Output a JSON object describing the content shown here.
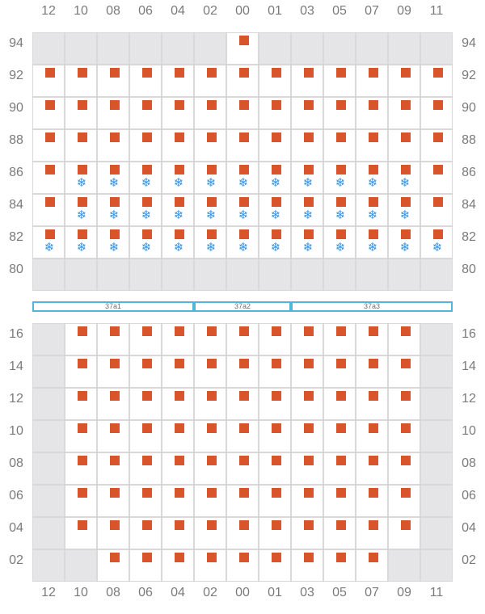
{
  "columns": [
    "12",
    "10",
    "08",
    "06",
    "04",
    "02",
    "00",
    "01",
    "03",
    "05",
    "07",
    "09",
    "11"
  ],
  "upper_block": {
    "rows": [
      {
        "label": "94",
        "cells": [
          "e",
          "e",
          "e",
          "e",
          "e",
          "e",
          "m",
          "e",
          "e",
          "e",
          "e",
          "e",
          "e"
        ]
      },
      {
        "label": "92",
        "cells": [
          "m",
          "m",
          "m",
          "m",
          "m",
          "m",
          "m",
          "m",
          "m",
          "m",
          "m",
          "m",
          "m"
        ]
      },
      {
        "label": "90",
        "cells": [
          "m",
          "m",
          "m",
          "m",
          "m",
          "m",
          "m",
          "m",
          "m",
          "m",
          "m",
          "m",
          "m"
        ]
      },
      {
        "label": "88",
        "cells": [
          "m",
          "m",
          "m",
          "m",
          "m",
          "m",
          "m",
          "m",
          "m",
          "m",
          "m",
          "m",
          "m"
        ]
      },
      {
        "label": "86",
        "cells": [
          "m",
          "mf",
          "mf",
          "mf",
          "mf",
          "mf",
          "mf",
          "mf",
          "mf",
          "mf",
          "mf",
          "mf",
          "m"
        ]
      },
      {
        "label": "84",
        "cells": [
          "m",
          "mf",
          "mf",
          "mf",
          "mf",
          "mf",
          "mf",
          "mf",
          "mf",
          "mf",
          "mf",
          "mf",
          "m"
        ]
      },
      {
        "label": "82",
        "cells": [
          "mf",
          "mf",
          "mf",
          "mf",
          "mf",
          "mf",
          "mf",
          "mf",
          "mf",
          "mf",
          "mf",
          "mf",
          "mf"
        ]
      },
      {
        "label": "80",
        "cells": [
          "e",
          "e",
          "e",
          "e",
          "e",
          "e",
          "e",
          "e",
          "e",
          "e",
          "e",
          "e",
          "e"
        ]
      }
    ]
  },
  "zones": [
    {
      "label": "37a1",
      "from_col": 0,
      "to_col": 4
    },
    {
      "label": "37a2",
      "from_col": 5,
      "to_col": 7
    },
    {
      "label": "37a3",
      "from_col": 8,
      "to_col": 12
    }
  ],
  "lower_block": {
    "rows": [
      {
        "label": "16",
        "cells": [
          "e",
          "m",
          "m",
          "m",
          "m",
          "m",
          "m",
          "m",
          "m",
          "m",
          "m",
          "m",
          "e"
        ]
      },
      {
        "label": "14",
        "cells": [
          "e",
          "m",
          "m",
          "m",
          "m",
          "m",
          "m",
          "m",
          "m",
          "m",
          "m",
          "m",
          "e"
        ]
      },
      {
        "label": "12",
        "cells": [
          "e",
          "m",
          "m",
          "m",
          "m",
          "m",
          "m",
          "m",
          "m",
          "m",
          "m",
          "m",
          "e"
        ]
      },
      {
        "label": "10",
        "cells": [
          "e",
          "m",
          "m",
          "m",
          "m",
          "m",
          "m",
          "m",
          "m",
          "m",
          "m",
          "m",
          "e"
        ]
      },
      {
        "label": "08",
        "cells": [
          "e",
          "m",
          "m",
          "m",
          "m",
          "m",
          "m",
          "m",
          "m",
          "m",
          "m",
          "m",
          "e"
        ]
      },
      {
        "label": "06",
        "cells": [
          "e",
          "m",
          "m",
          "m",
          "m",
          "m",
          "m",
          "m",
          "m",
          "m",
          "m",
          "m",
          "e"
        ]
      },
      {
        "label": "04",
        "cells": [
          "e",
          "m",
          "m",
          "m",
          "m",
          "m",
          "m",
          "m",
          "m",
          "m",
          "m",
          "m",
          "e"
        ]
      },
      {
        "label": "02",
        "cells": [
          "e",
          "e",
          "m",
          "m",
          "m",
          "m",
          "m",
          "m",
          "m",
          "m",
          "m",
          "e",
          "e"
        ]
      }
    ]
  },
  "legend": {
    "cell_codes": {
      "e": "empty",
      "m": "marker",
      "mf": "marker+snowflake"
    },
    "marker_color": "#d9542b",
    "snowflake_color": "#3a8fd9",
    "empty_color": "#e5e5e8",
    "zone_border_color": "#4fb6d8",
    "marker_icon": "square-marker-icon",
    "snowflake_icon": "snowflake-icon",
    "snowflake_glyph": "❄"
  }
}
